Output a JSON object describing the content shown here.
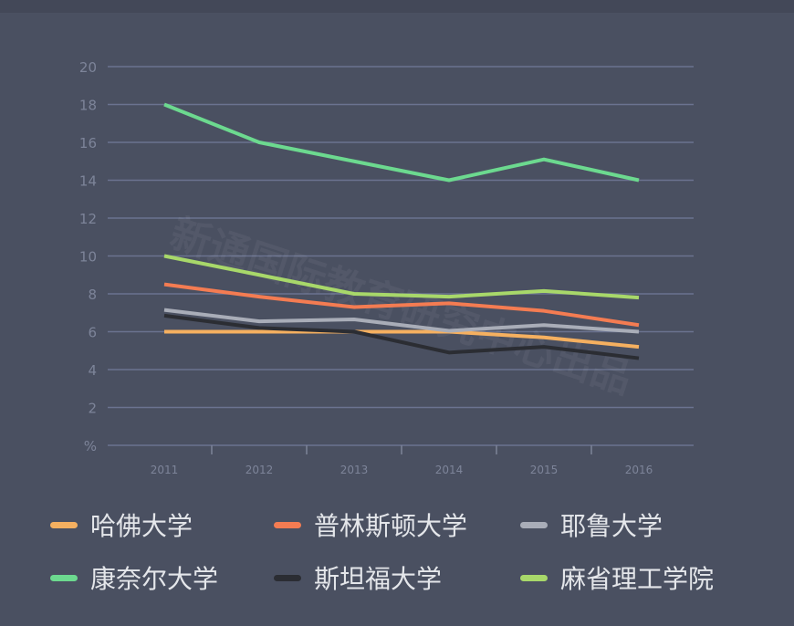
{
  "chart_data": {
    "type": "line",
    "title": "",
    "xlabel": "",
    "ylabel": "%",
    "x": [
      "2011",
      "2012",
      "2013",
      "2014",
      "2015",
      "2016"
    ],
    "yticks": [
      "%",
      "2",
      "4",
      "6",
      "8",
      "10",
      "12",
      "14",
      "16",
      "18",
      "20"
    ],
    "ylim": [
      0,
      20
    ],
    "grid": true,
    "legend_position": "bottom",
    "watermark": "新通国际教育研究中心出品",
    "series": [
      {
        "name": "哈佛大学",
        "color": "#f5b060",
        "values": [
          6.0,
          6.0,
          6.0,
          6.0,
          5.7,
          5.2
        ]
      },
      {
        "name": "普林斯顿大学",
        "color": "#f47c52",
        "values": [
          8.5,
          7.85,
          7.3,
          7.5,
          7.1,
          6.35
        ]
      },
      {
        "name": "耶鲁大学",
        "color": "#a9adb8",
        "values": [
          7.15,
          6.55,
          6.65,
          6.05,
          6.35,
          6.0
        ]
      },
      {
        "name": "康奈尔大学",
        "color": "#6cd98f",
        "values": [
          18,
          16,
          15,
          14,
          15.1,
          14
        ]
      },
      {
        "name": "斯坦福大学",
        "color": "#2b2d33",
        "values": [
          6.85,
          6.2,
          6.0,
          4.9,
          5.2,
          4.6
        ]
      },
      {
        "name": "麻省理工学院",
        "color": "#a8d86a",
        "values": [
          10,
          9.0,
          8.0,
          7.85,
          8.15,
          7.8
        ]
      }
    ]
  }
}
